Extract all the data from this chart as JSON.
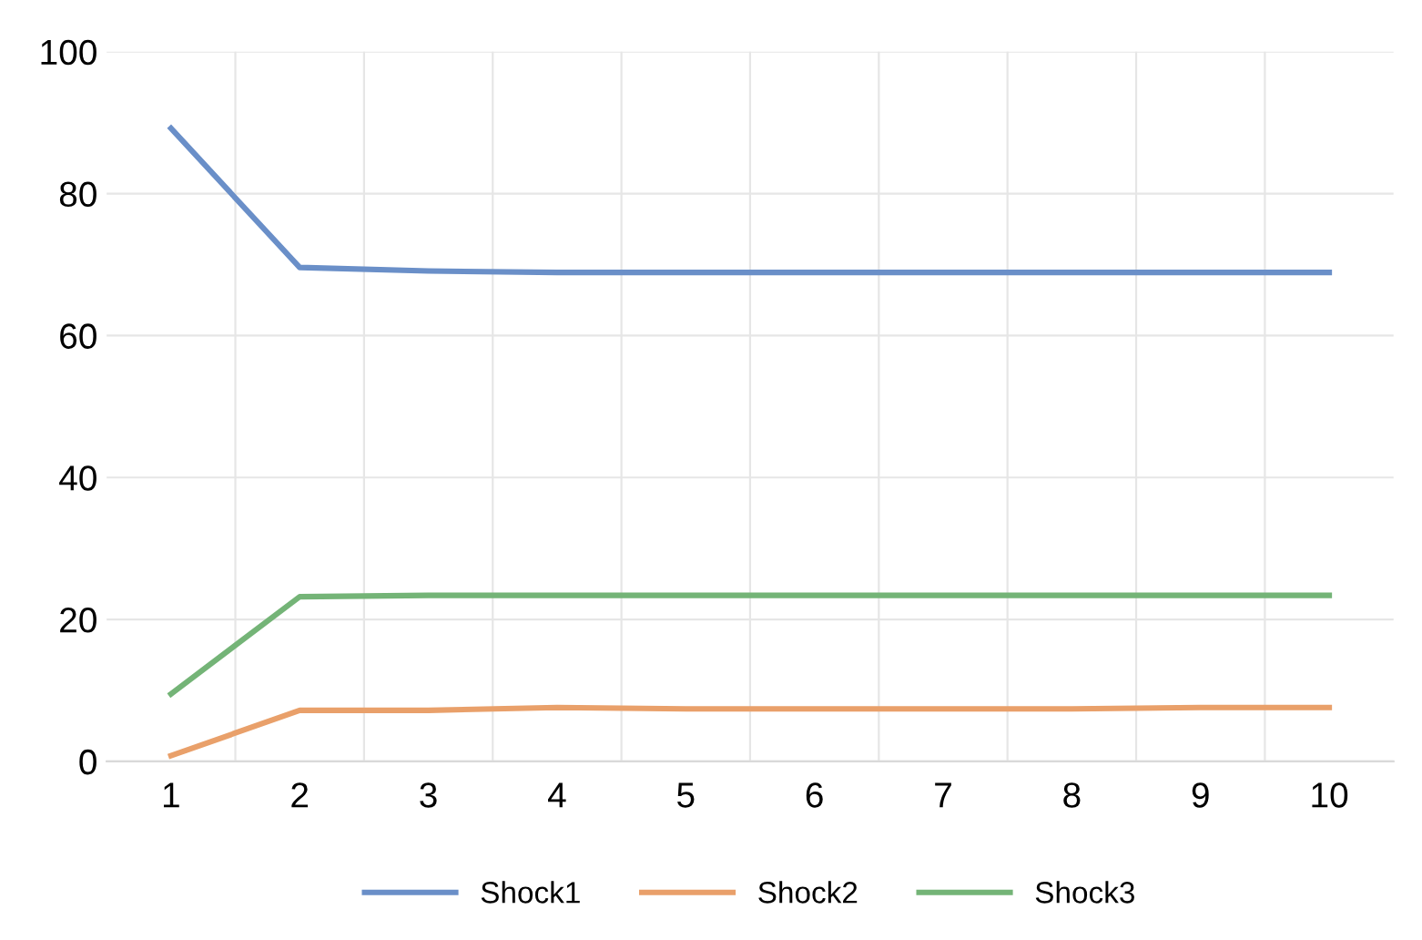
{
  "chart_data": {
    "type": "line",
    "categories": [
      "1",
      "2",
      "3",
      "4",
      "5",
      "6",
      "7",
      "8",
      "9",
      "10"
    ],
    "series": [
      {
        "name": "Shock1",
        "color": "#6a8fc8",
        "values": [
          89.2,
          69.6,
          69.1,
          68.9,
          68.9,
          68.9,
          68.9,
          68.9,
          68.9,
          68.9
        ]
      },
      {
        "name": "Shock2",
        "color": "#e9a06a",
        "values": [
          0.8,
          7.2,
          7.2,
          7.6,
          7.4,
          7.4,
          7.4,
          7.4,
          7.6,
          7.6
        ]
      },
      {
        "name": "Shock3",
        "color": "#74b477",
        "values": [
          9.5,
          23.2,
          23.4,
          23.4,
          23.4,
          23.4,
          23.4,
          23.4,
          23.4,
          23.4
        ]
      }
    ],
    "ylim": [
      0,
      100
    ],
    "yticks": [
      0,
      20,
      40,
      60,
      80,
      100
    ],
    "grid": true,
    "legend": "bottom",
    "marker": "none",
    "line_style": "solid"
  }
}
